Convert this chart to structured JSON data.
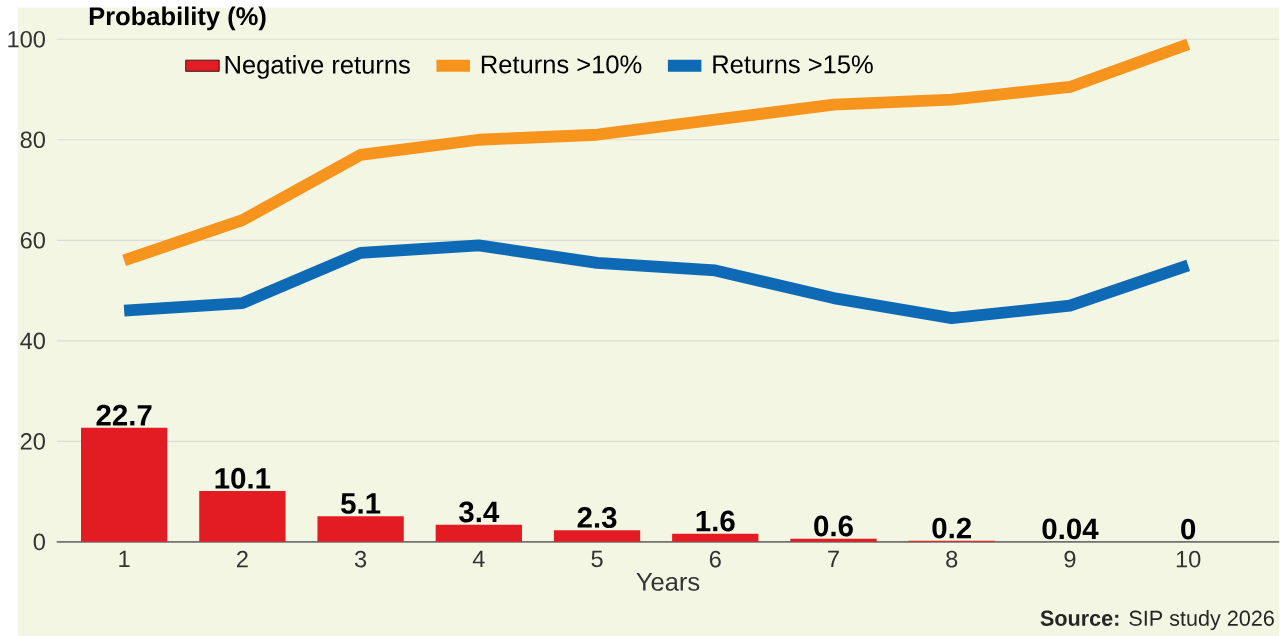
{
  "chart_data": {
    "type": "bar",
    "ylabel": "Probability (%)",
    "xlabel": "Years",
    "categories": [
      "1",
      "2",
      "3",
      "4",
      "5",
      "6",
      "7",
      "8",
      "9",
      "10"
    ],
    "series": [
      {
        "name": "Negative returns",
        "color": "#e31b23",
        "values": [
          22.7,
          10.1,
          5.1,
          3.4,
          2.3,
          1.6,
          0.6,
          0.2,
          0.04,
          0
        ],
        "value_labels": [
          "22.7",
          "10.1",
          "5.1",
          "3.4",
          "2.3",
          "1.6",
          "0.6",
          "0.2",
          "0.04",
          "0"
        ]
      },
      {
        "name": "Returns >10%",
        "type": "line",
        "color": "#f7941d",
        "values": [
          56,
          64,
          77,
          80,
          81,
          84,
          87,
          88,
          90.5,
          99
        ]
      },
      {
        "name": "Returns >15%",
        "type": "line",
        "color": "#0e6ab5",
        "values": [
          46,
          47.5,
          57.5,
          59,
          55.5,
          54,
          48.5,
          44.5,
          47,
          55
        ]
      }
    ],
    "ylim": [
      0,
      100
    ],
    "yticks": [
      0,
      20,
      40,
      60,
      80,
      100
    ],
    "grid": "y",
    "legend": "top left",
    "annotations": [
      "**Source:** SIP study 2026"
    ]
  }
}
